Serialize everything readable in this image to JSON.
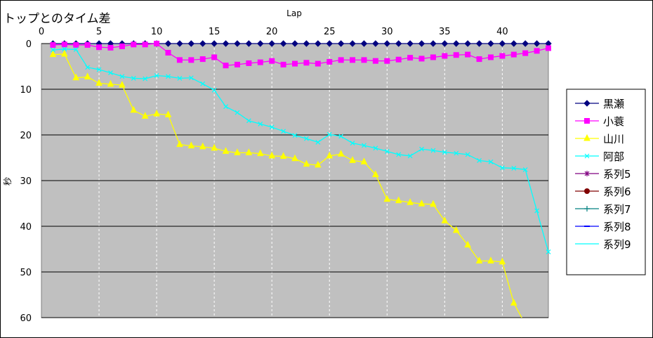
{
  "chart_data": {
    "type": "line",
    "title": "トップとのタイム差",
    "xlabel": "Lap",
    "ylabel": "秒",
    "xlim": [
      0,
      44
    ],
    "ylim": [
      0,
      60
    ],
    "y_inverted": true,
    "x_ticks": [
      0,
      5,
      10,
      15,
      20,
      25,
      30,
      35,
      40
    ],
    "y_ticks": [
      0,
      10,
      20,
      30,
      40,
      50,
      60
    ],
    "grid": "horizontal major lines, vertical dashed lines",
    "plot_background": "#c0c0c0",
    "legend_position": "right",
    "series": [
      {
        "name": "黒瀬",
        "color": "#000080",
        "marker": "diamond",
        "x": [
          1,
          2,
          3,
          4,
          5,
          6,
          7,
          8,
          9,
          10,
          11,
          12,
          13,
          14,
          15,
          16,
          17,
          18,
          19,
          20,
          21,
          22,
          23,
          24,
          25,
          26,
          27,
          28,
          29,
          30,
          31,
          32,
          33,
          34,
          35,
          36,
          37,
          38,
          39,
          40,
          41,
          42,
          43,
          44
        ],
        "y": [
          0,
          0,
          0,
          0,
          0,
          0,
          0,
          0,
          0,
          0,
          0,
          0,
          0,
          0,
          0,
          0,
          0,
          0,
          0,
          0,
          0,
          0,
          0,
          0,
          0,
          0,
          0,
          0,
          0,
          0,
          0,
          0,
          0,
          0,
          0,
          0,
          0,
          0,
          0,
          0,
          0,
          0,
          0,
          0
        ]
      },
      {
        "name": "小蓑",
        "color": "#ff00ff",
        "marker": "square",
        "x": [
          1,
          2,
          3,
          4,
          5,
          6,
          7,
          8,
          9,
          10,
          11,
          12,
          13,
          14,
          15,
          16,
          17,
          18,
          19,
          20,
          21,
          22,
          23,
          24,
          25,
          26,
          27,
          28,
          29,
          30,
          31,
          32,
          33,
          34,
          35,
          36,
          37,
          38,
          39,
          40,
          41,
          42,
          43,
          44
        ],
        "y": [
          0.3,
          0.2,
          0.3,
          0.3,
          0.8,
          0.9,
          0.6,
          0.2,
          0.2,
          0.0,
          2.0,
          3.6,
          3.6,
          3.4,
          3.0,
          4.8,
          4.6,
          4.3,
          4.1,
          3.8,
          4.6,
          4.4,
          4.2,
          4.4,
          4.0,
          3.6,
          3.6,
          3.6,
          3.8,
          3.8,
          3.5,
          3.1,
          3.3,
          3.0,
          2.7,
          2.5,
          2.4,
          3.4,
          3.0,
          2.7,
          2.4,
          2.1,
          1.6,
          1.0
        ]
      },
      {
        "name": "山川",
        "color": "#ffff00",
        "marker": "triangle",
        "x": [
          1,
          2,
          3,
          4,
          5,
          6,
          7,
          8,
          9,
          10,
          11,
          12,
          13,
          14,
          15,
          16,
          17,
          18,
          19,
          20,
          21,
          22,
          23,
          24,
          25,
          26,
          27,
          28,
          29,
          30,
          31,
          32,
          33,
          34,
          35,
          36,
          37,
          38,
          39,
          40,
          41,
          42
        ],
        "y": [
          2.4,
          2.3,
          7.5,
          7.3,
          8.7,
          8.9,
          9.1,
          14.6,
          15.9,
          15.4,
          15.6,
          22.1,
          22.4,
          22.6,
          22.9,
          23.6,
          23.9,
          23.9,
          24.1,
          24.6,
          24.7,
          25.2,
          26.4,
          26.6,
          24.6,
          24.2,
          25.6,
          25.9,
          28.7,
          34.1,
          34.4,
          34.8,
          35.1,
          35.2,
          38.8,
          40.9,
          44.1,
          47.6,
          47.6,
          47.8,
          56.8,
          61.5
        ]
      },
      {
        "name": "阿部",
        "color": "#00ffff",
        "marker": "x",
        "x": [
          1,
          2,
          3,
          4,
          5,
          6,
          7,
          8,
          9,
          10,
          11,
          12,
          13,
          14,
          15,
          16,
          17,
          18,
          19,
          20,
          21,
          22,
          23,
          24,
          25,
          26,
          27,
          28,
          29,
          30,
          31,
          32,
          33,
          34,
          35,
          36,
          37,
          38,
          39,
          40,
          41,
          42,
          43,
          44
        ],
        "y": [
          1.4,
          1.2,
          1.3,
          5.2,
          5.7,
          6.4,
          7.2,
          7.6,
          7.7,
          7.0,
          7.2,
          7.6,
          7.5,
          8.8,
          10.2,
          13.8,
          15.1,
          16.9,
          17.6,
          18.3,
          19.2,
          20.1,
          20.8,
          21.6,
          19.9,
          20.3,
          21.8,
          22.3,
          22.9,
          23.6,
          24.3,
          24.6,
          23.1,
          23.4,
          23.8,
          24.0,
          24.3,
          25.6,
          25.9,
          27.2,
          27.3,
          27.6,
          36.6,
          45.6
        ]
      }
    ],
    "legend": [
      "黒瀬",
      "小蓑",
      "山川",
      "阿部",
      "系列5",
      "系列6",
      "系列7",
      "系列8",
      "系列9"
    ],
    "legend_styles": [
      {
        "color": "#000080",
        "marker": "diamond"
      },
      {
        "color": "#ff00ff",
        "marker": "square"
      },
      {
        "color": "#ffff00",
        "marker": "triangle"
      },
      {
        "color": "#00ffff",
        "marker": "x"
      },
      {
        "color": "#800080",
        "marker": "star"
      },
      {
        "color": "#800000",
        "marker": "circle"
      },
      {
        "color": "#008080",
        "marker": "plus"
      },
      {
        "color": "#0000ff",
        "marker": "dash"
      },
      {
        "color": "#00ffff",
        "marker": "none"
      }
    ]
  }
}
